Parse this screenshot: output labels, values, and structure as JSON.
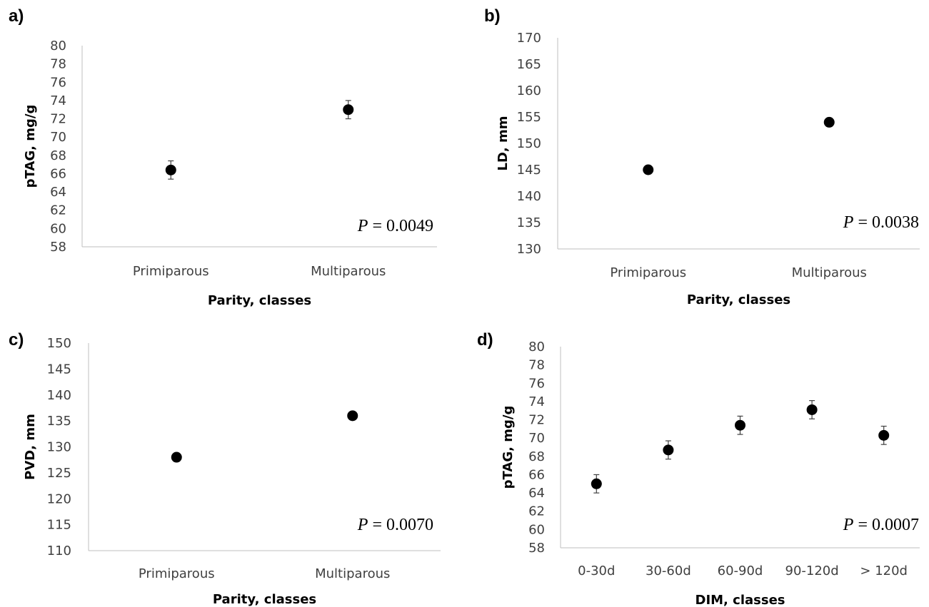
{
  "chart_data": [
    {
      "id": "a",
      "type": "scatter",
      "panel_label": "a)",
      "categories": [
        "Primiparous",
        "Multiparous"
      ],
      "values": [
        66.4,
        73.0
      ],
      "errors": [
        1.0,
        1.0
      ],
      "ylim": [
        58,
        80
      ],
      "ytick_step": 2,
      "yticks": [
        "58",
        "60",
        "62",
        "64",
        "66",
        "68",
        "70",
        "72",
        "74",
        "76",
        "78",
        "80"
      ],
      "ylabel": "pTAG, mg/g",
      "xlabel": "Parity, classes",
      "p_symbol": "P",
      "p_text": " = 0.0049",
      "grid": false
    },
    {
      "id": "b",
      "type": "scatter",
      "panel_label": "b)",
      "categories": [
        "Primiparous",
        "Multiparous"
      ],
      "values": [
        145,
        154
      ],
      "errors": [
        0.6,
        0.6
      ],
      "ylim": [
        130,
        170
      ],
      "ytick_step": 5,
      "yticks": [
        "130",
        "135",
        "140",
        "145",
        "150",
        "155",
        "160",
        "165",
        "170"
      ],
      "ylabel": "LD, mm",
      "xlabel": "Parity, classes",
      "p_symbol": "P",
      "p_text": " = 0.0038",
      "grid": false
    },
    {
      "id": "c",
      "type": "scatter",
      "panel_label": "c)",
      "categories": [
        "Primiparous",
        "Multiparous"
      ],
      "values": [
        128,
        136
      ],
      "errors": [
        0.5,
        0.5
      ],
      "ylim": [
        110,
        150
      ],
      "ytick_step": 5,
      "yticks": [
        "110",
        "115",
        "120",
        "125",
        "130",
        "135",
        "140",
        "145",
        "150"
      ],
      "ylabel": "PVD, mm",
      "xlabel": "Parity, classes",
      "p_symbol": "P",
      "p_text": " = 0.0070",
      "grid": false
    },
    {
      "id": "d",
      "type": "scatter",
      "panel_label": "d)",
      "categories": [
        "0-30d",
        "30-60d",
        "60-90d",
        "90-120d",
        "> 120d"
      ],
      "values": [
        65.0,
        68.7,
        71.4,
        73.1,
        70.3
      ],
      "errors": [
        1.0,
        1.0,
        1.0,
        1.0,
        1.0
      ],
      "ylim": [
        58,
        80
      ],
      "ytick_step": 2,
      "yticks": [
        "58",
        "60",
        "62",
        "64",
        "66",
        "68",
        "70",
        "72",
        "74",
        "76",
        "78",
        "80"
      ],
      "ylabel": "pTAG, mg/g",
      "xlabel": "DIM, classes",
      "p_symbol": "P",
      "p_text": " = 0.0007",
      "grid": false
    }
  ]
}
